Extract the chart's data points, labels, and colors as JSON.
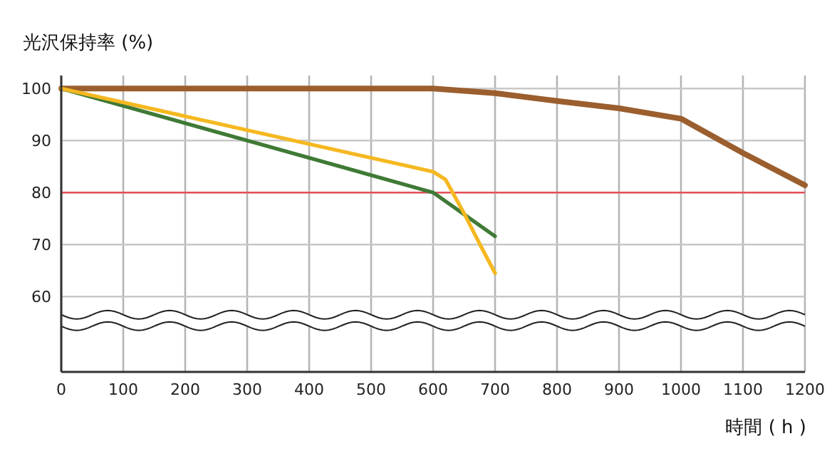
{
  "chart_data": {
    "type": "line",
    "ylabel": "光沢保持率 (%)",
    "xlabel": "時間 ( h )",
    "xlim": [
      0,
      1200
    ],
    "xticks": [
      0,
      100,
      200,
      300,
      400,
      500,
      600,
      700,
      800,
      900,
      1000,
      1100,
      1200
    ],
    "ylim": [
      45.5,
      102.5
    ],
    "yticks": [
      60,
      70,
      80,
      90,
      100
    ],
    "grid": true,
    "series": [
      {
        "color": "#9b5e2e",
        "x": [
          0,
          600,
          700,
          800,
          900,
          1000,
          1100,
          1200
        ],
        "values": [
          100,
          100,
          99.1,
          97.6,
          96.2,
          94.2,
          87.6,
          81.4
        ]
      },
      {
        "color": "#3f7a35",
        "x": [
          0,
          600,
          700
        ],
        "values": [
          100,
          80,
          71.6
        ]
      },
      {
        "color": "#f5b820",
        "x": [
          0,
          600,
          620,
          650,
          680,
          700
        ],
        "values": [
          100,
          84,
          82.5,
          76,
          69,
          64.5
        ]
      }
    ],
    "ref_lines": [
      {
        "axis": "y",
        "value": 80,
        "color": "#e8505a"
      }
    ],
    "bands": [
      {
        "axis": "y",
        "from": 54.3,
        "to": 56.5,
        "color": "#ffffff"
      }
    ]
  }
}
